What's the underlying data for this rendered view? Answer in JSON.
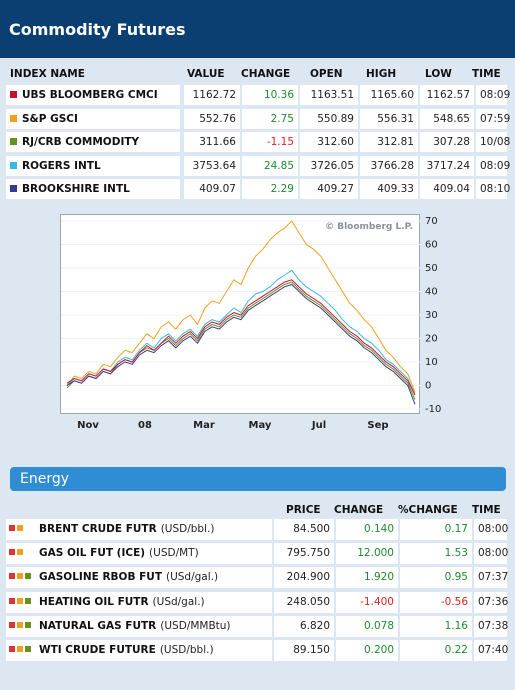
{
  "header": {
    "title": "Commodity Futures"
  },
  "indices": {
    "columns": [
      "INDEX NAME",
      "VALUE",
      "CHANGE",
      "OPEN",
      "HIGH",
      "LOW",
      "TIME"
    ],
    "rows": [
      {
        "name": "UBS BLOOMBERG CMCI",
        "color": "#c8102e",
        "value": "1162.72",
        "change": "10.36",
        "dir": "pos",
        "open": "1163.51",
        "high": "1165.60",
        "low": "1162.57",
        "time": "08:09"
      },
      {
        "name": "S&P GSCI",
        "color": "#f0a020",
        "value": "552.76",
        "change": "2.75",
        "dir": "pos",
        "open": "550.89",
        "high": "556.31",
        "low": "548.65",
        "time": "07:59"
      },
      {
        "name": "RJ/CRB COMMODITY",
        "color": "#6b8e23",
        "value": "311.66",
        "change": "-1.15",
        "dir": "neg",
        "open": "312.60",
        "high": "312.81",
        "low": "307.28",
        "time": "10/08"
      },
      {
        "name": "ROGERS INTL",
        "color": "#38b8e0",
        "value": "3753.64",
        "change": "24.85",
        "dir": "pos",
        "open": "3726.05",
        "high": "3766.28",
        "low": "3717.24",
        "time": "08:09"
      },
      {
        "name": "BROOKSHIRE INTL",
        "color": "#3a3a8a",
        "value": "409.07",
        "change": "2.29",
        "dir": "pos",
        "open": "409.27",
        "high": "409.33",
        "low": "409.04",
        "time": "08:10"
      }
    ]
  },
  "chart_data": {
    "type": "line",
    "watermark": "© Bloomberg L.P.",
    "x_ticks": [
      "Nov",
      "08",
      "Mar",
      "May",
      "Jul",
      "Sep"
    ],
    "y_ticks": [
      70,
      60,
      50,
      40,
      30,
      20,
      10,
      0,
      -10
    ],
    "ylim": [
      -10,
      70
    ],
    "series": [
      {
        "name": "S&P GSCI",
        "color": "#f0a020",
        "values": [
          0,
          4,
          3,
          6,
          5,
          9,
          8,
          12,
          15,
          14,
          18,
          22,
          20,
          25,
          27,
          24,
          28,
          30,
          26,
          33,
          36,
          35,
          40,
          45,
          43,
          50,
          55,
          58,
          62,
          65,
          67,
          70,
          65,
          60,
          58,
          55,
          50,
          45,
          40,
          35,
          32,
          28,
          25,
          20,
          15,
          12,
          8,
          5,
          -3
        ]
      },
      {
        "name": "ROGERS INTL",
        "color": "#38b8e0",
        "values": [
          0,
          3,
          2,
          5,
          4,
          7,
          6,
          10,
          12,
          11,
          15,
          18,
          16,
          20,
          22,
          19,
          22,
          24,
          21,
          26,
          28,
          27,
          30,
          33,
          31,
          36,
          39,
          40,
          42,
          45,
          47,
          49,
          45,
          42,
          40,
          38,
          35,
          32,
          28,
          25,
          23,
          20,
          18,
          15,
          11,
          9,
          6,
          3,
          -4
        ]
      },
      {
        "name": "RJ/CRB COMMODITY",
        "color": "#6b8e23",
        "values": [
          -1,
          2,
          1,
          4,
          3,
          6,
          5,
          9,
          11,
          10,
          14,
          16,
          15,
          18,
          20,
          17,
          20,
          22,
          19,
          24,
          26,
          25,
          28,
          30,
          29,
          33,
          35,
          37,
          39,
          41,
          43,
          44,
          41,
          38,
          36,
          34,
          31,
          28,
          25,
          22,
          20,
          17,
          15,
          12,
          9,
          7,
          4,
          1,
          -6
        ]
      },
      {
        "name": "BROOKSHIRE INTL",
        "color": "#3a3a8a",
        "values": [
          0,
          2,
          1,
          4,
          3,
          6,
          5,
          8,
          10,
          9,
          13,
          15,
          14,
          17,
          19,
          16,
          19,
          21,
          18,
          23,
          25,
          24,
          27,
          29,
          28,
          32,
          34,
          36,
          38,
          40,
          42,
          43,
          40,
          37,
          35,
          33,
          30,
          27,
          24,
          21,
          19,
          16,
          14,
          11,
          8,
          6,
          3,
          0,
          -8
        ]
      },
      {
        "name": "UBS BLOOMBERG CMCI",
        "color": "#c8102e",
        "values": [
          1,
          3,
          2,
          5,
          4,
          7,
          6,
          9,
          11,
          10,
          14,
          17,
          15,
          18,
          21,
          18,
          21,
          23,
          20,
          25,
          27,
          26,
          29,
          31,
          30,
          34,
          36,
          38,
          40,
          42,
          44,
          45,
          42,
          39,
          37,
          35,
          32,
          29,
          26,
          23,
          21,
          18,
          16,
          13,
          10,
          8,
          5,
          2,
          -4
        ]
      }
    ]
  },
  "energy": {
    "title": "Energy",
    "columns": [
      "PRICE",
      "CHANGE",
      "%CHANGE",
      "TIME"
    ],
    "rows": [
      {
        "name": "BRENT CRUDE FUTR",
        "unit": "(USD/bbl.)",
        "squares": [
          "#d33",
          "#f0a020"
        ],
        "price": "84.500",
        "change": "0.140",
        "pct": "0.17",
        "dir": "pos",
        "time": "08:00"
      },
      {
        "name": "GAS OIL FUT (ICE)",
        "unit": "(USD/MT)",
        "squares": [
          "#d33",
          "#f0a020"
        ],
        "price": "795.750",
        "change": "12.000",
        "pct": "1.53",
        "dir": "pos",
        "time": "08:00"
      },
      {
        "name": "GASOLINE RBOB FUT",
        "unit": "(USd/gal.)",
        "squares": [
          "#d33",
          "#f0a020",
          "#6b8e23"
        ],
        "price": "204.900",
        "change": "1.920",
        "pct": "0.95",
        "dir": "pos",
        "time": "07:37"
      },
      {
        "name": "HEATING OIL FUTR",
        "unit": "(USd/gal.)",
        "squares": [
          "#d33",
          "#f0a020",
          "#6b8e23"
        ],
        "price": "248.050",
        "change": "-1.400",
        "pct": "-0.56",
        "dir": "neg",
        "time": "07:36"
      },
      {
        "name": "NATURAL GAS FUTR",
        "unit": "(USD/MMBtu)",
        "squares": [
          "#d33",
          "#f0a020",
          "#6b8e23"
        ],
        "price": "6.820",
        "change": "0.078",
        "pct": "1.16",
        "dir": "pos",
        "time": "07:38"
      },
      {
        "name": "WTI CRUDE FUTURE",
        "unit": "(USD/bbl.)",
        "squares": [
          "#d33",
          "#f0a020",
          "#6b8e23"
        ],
        "price": "89.150",
        "change": "0.200",
        "pct": "0.22",
        "dir": "pos",
        "time": "07:40"
      }
    ]
  }
}
